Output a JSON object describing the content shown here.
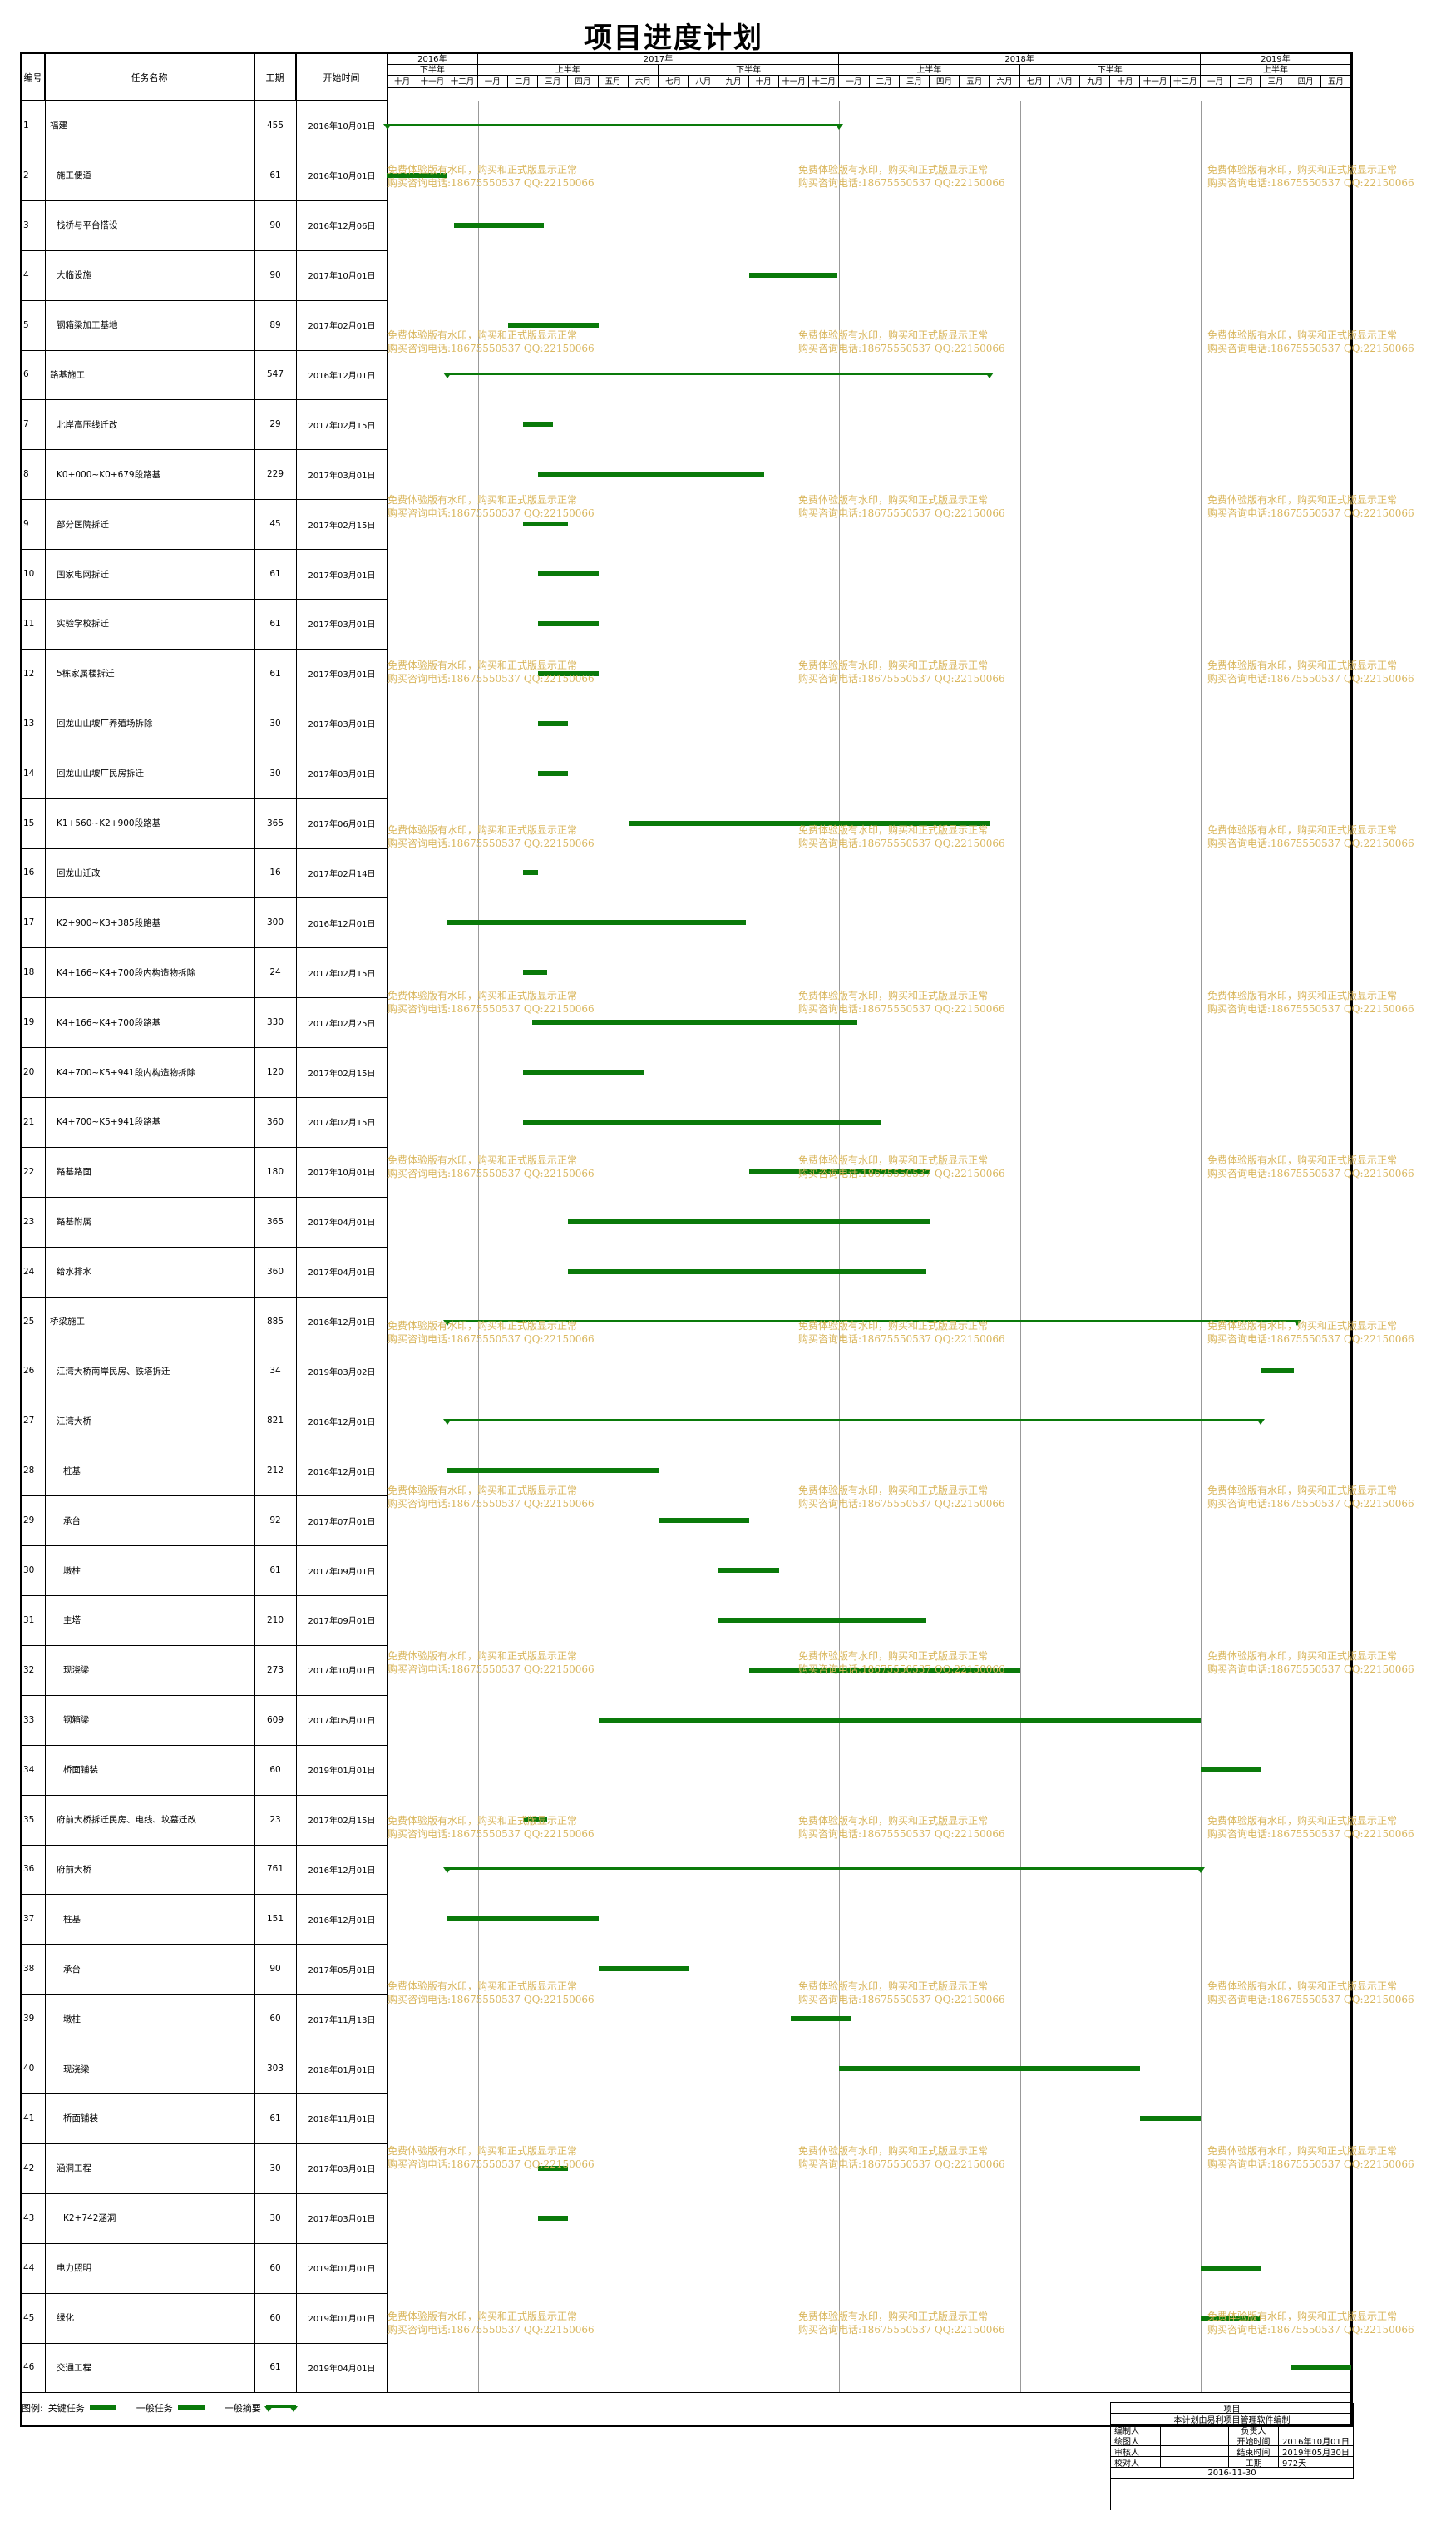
{
  "title": "项目进度计划",
  "columns": {
    "id": "编号",
    "name": "任务名称",
    "duration": "工期",
    "start": "开始时间"
  },
  "timeline": {
    "years": [
      {
        "label": "2016年",
        "start": 0,
        "span": 3
      },
      {
        "label": "2017年",
        "start": 3,
        "span": 12
      },
      {
        "label": "2018年",
        "start": 15,
        "span": 12
      },
      {
        "label": "2019年",
        "start": 27,
        "span": 5
      }
    ],
    "halves": [
      {
        "label": "下半年",
        "start": 0,
        "span": 3
      },
      {
        "label": "上半年",
        "start": 3,
        "span": 6
      },
      {
        "label": "下半年",
        "start": 9,
        "span": 6
      },
      {
        "label": "上半年",
        "start": 15,
        "span": 6
      },
      {
        "label": "下半年",
        "start": 21,
        "span": 6
      },
      {
        "label": "上半年",
        "start": 27,
        "span": 5
      }
    ],
    "months": [
      "十月",
      "十一月",
      "十二月",
      "一月",
      "二月",
      "三月",
      "四月",
      "五月",
      "六月",
      "七月",
      "八月",
      "九月",
      "十月",
      "十一月",
      "十二月",
      "一月",
      "二月",
      "三月",
      "四月",
      "五月",
      "六月",
      "七月",
      "八月",
      "九月",
      "十月",
      "十一月",
      "十二月",
      "一月",
      "二月",
      "三月",
      "四月",
      "五月"
    ]
  },
  "tasks": [
    {
      "id": "1",
      "name": "福建",
      "duration": "455",
      "start": "2016年10月01日",
      "indent": 0,
      "type": "summary",
      "s": 0,
      "e": 15
    },
    {
      "id": "2",
      "name": "施工便道",
      "duration": "61",
      "start": "2016年10月01日",
      "indent": 1,
      "type": "task",
      "s": 0,
      "e": 2
    },
    {
      "id": "3",
      "name": "栈桥与平台搭设",
      "duration": "90",
      "start": "2016年12月06日",
      "indent": 1,
      "type": "task",
      "s": 2.2,
      "e": 5.2
    },
    {
      "id": "4",
      "name": "大临设施",
      "duration": "90",
      "start": "2017年10月01日",
      "indent": 1,
      "type": "task",
      "s": 12,
      "e": 14.9
    },
    {
      "id": "5",
      "name": "钢箱梁加工基地",
      "duration": "89",
      "start": "2017年02月01日",
      "indent": 1,
      "type": "task",
      "s": 4,
      "e": 7
    },
    {
      "id": "6",
      "name": "路基施工",
      "duration": "547",
      "start": "2016年12月01日",
      "indent": 0,
      "type": "summary",
      "s": 2,
      "e": 20
    },
    {
      "id": "7",
      "name": "北岸高压线迁改",
      "duration": "29",
      "start": "2017年02月15日",
      "indent": 1,
      "type": "task",
      "s": 4.5,
      "e": 5.5
    },
    {
      "id": "8",
      "name": "K0+000~K0+679段路基",
      "duration": "229",
      "start": "2017年03月01日",
      "indent": 1,
      "type": "task",
      "s": 5,
      "e": 12.5
    },
    {
      "id": "9",
      "name": "部分医院拆迁",
      "duration": "45",
      "start": "2017年02月15日",
      "indent": 1,
      "type": "task",
      "s": 4.5,
      "e": 6
    },
    {
      "id": "10",
      "name": "国家电网拆迁",
      "duration": "61",
      "start": "2017年03月01日",
      "indent": 1,
      "type": "task",
      "s": 5,
      "e": 7
    },
    {
      "id": "11",
      "name": "实验学校拆迁",
      "duration": "61",
      "start": "2017年03月01日",
      "indent": 1,
      "type": "task",
      "s": 5,
      "e": 7
    },
    {
      "id": "12",
      "name": "5栋家属楼拆迁",
      "duration": "61",
      "start": "2017年03月01日",
      "indent": 1,
      "type": "task",
      "s": 5,
      "e": 7
    },
    {
      "id": "13",
      "name": "回龙山山坡厂养殖场拆除",
      "duration": "30",
      "start": "2017年03月01日",
      "indent": 1,
      "type": "task",
      "s": 5,
      "e": 6
    },
    {
      "id": "14",
      "name": "回龙山山坡厂民房拆迁",
      "duration": "30",
      "start": "2017年03月01日",
      "indent": 1,
      "type": "task",
      "s": 5,
      "e": 6
    },
    {
      "id": "15",
      "name": "K1+560~K2+900段路基",
      "duration": "365",
      "start": "2017年06月01日",
      "indent": 1,
      "type": "task",
      "s": 8,
      "e": 20
    },
    {
      "id": "16",
      "name": "回龙山迁改",
      "duration": "16",
      "start": "2017年02月14日",
      "indent": 1,
      "type": "task",
      "s": 4.5,
      "e": 5
    },
    {
      "id": "17",
      "name": "K2+900~K3+385段路基",
      "duration": "300",
      "start": "2016年12月01日",
      "indent": 1,
      "type": "task",
      "s": 2,
      "e": 11.9
    },
    {
      "id": "18",
      "name": "K4+166~K4+700段内构造物拆除",
      "duration": "24",
      "start": "2017年02月15日",
      "indent": 1,
      "type": "task",
      "s": 4.5,
      "e": 5.3
    },
    {
      "id": "19",
      "name": "K4+166~K4+700段路基",
      "duration": "330",
      "start": "2017年02月25日",
      "indent": 1,
      "type": "task",
      "s": 4.8,
      "e": 15.6
    },
    {
      "id": "20",
      "name": "K4+700~K5+941段内构造物拆除",
      "duration": "120",
      "start": "2017年02月15日",
      "indent": 1,
      "type": "task",
      "s": 4.5,
      "e": 8.5
    },
    {
      "id": "21",
      "name": "K4+700~K5+941段路基",
      "duration": "360",
      "start": "2017年02月15日",
      "indent": 1,
      "type": "task",
      "s": 4.5,
      "e": 16.4
    },
    {
      "id": "22",
      "name": "路基路面",
      "duration": "180",
      "start": "2017年10月01日",
      "indent": 1,
      "type": "task",
      "s": 12,
      "e": 18
    },
    {
      "id": "23",
      "name": "路基附属",
      "duration": "365",
      "start": "2017年04月01日",
      "indent": 1,
      "type": "task",
      "s": 6,
      "e": 18
    },
    {
      "id": "24",
      "name": "给水排水",
      "duration": "360",
      "start": "2017年04月01日",
      "indent": 1,
      "type": "task",
      "s": 6,
      "e": 17.9
    },
    {
      "id": "25",
      "name": "桥梁施工",
      "duration": "885",
      "start": "2016年12月01日",
      "indent": 0,
      "type": "summary",
      "s": 2,
      "e": 30.2
    },
    {
      "id": "26",
      "name": "江湾大桥南岸民房、铁塔拆迁",
      "duration": "34",
      "start": "2019年03月02日",
      "indent": 1,
      "type": "task",
      "s": 29,
      "e": 30.1
    },
    {
      "id": "27",
      "name": "江湾大桥",
      "duration": "821",
      "start": "2016年12月01日",
      "indent": 1,
      "type": "summary",
      "s": 2,
      "e": 29
    },
    {
      "id": "28",
      "name": "桩基",
      "duration": "212",
      "start": "2016年12月01日",
      "indent": 2,
      "type": "task",
      "s": 2,
      "e": 9
    },
    {
      "id": "29",
      "name": "承台",
      "duration": "92",
      "start": "2017年07月01日",
      "indent": 2,
      "type": "task",
      "s": 9,
      "e": 12
    },
    {
      "id": "30",
      "name": "墩柱",
      "duration": "61",
      "start": "2017年09月01日",
      "indent": 2,
      "type": "task",
      "s": 11,
      "e": 13
    },
    {
      "id": "31",
      "name": "主塔",
      "duration": "210",
      "start": "2017年09月01日",
      "indent": 2,
      "type": "task",
      "s": 11,
      "e": 17.9
    },
    {
      "id": "32",
      "name": "现浇梁",
      "duration": "273",
      "start": "2017年10月01日",
      "indent": 2,
      "type": "task",
      "s": 12,
      "e": 21
    },
    {
      "id": "33",
      "name": "钢箱梁",
      "duration": "609",
      "start": "2017年05月01日",
      "indent": 2,
      "type": "task",
      "s": 7,
      "e": 27
    },
    {
      "id": "34",
      "name": "桥面铺装",
      "duration": "60",
      "start": "2019年01月01日",
      "indent": 2,
      "type": "task",
      "s": 27,
      "e": 29
    },
    {
      "id": "35",
      "name": "府前大桥拆迁民房、电线、坟墓迁改",
      "duration": "23",
      "start": "2017年02月15日",
      "indent": 1,
      "type": "task",
      "s": 4.5,
      "e": 5.3
    },
    {
      "id": "36",
      "name": "府前大桥",
      "duration": "761",
      "start": "2016年12月01日",
      "indent": 1,
      "type": "summary",
      "s": 2,
      "e": 27
    },
    {
      "id": "37",
      "name": "桩基",
      "duration": "151",
      "start": "2016年12月01日",
      "indent": 2,
      "type": "task",
      "s": 2,
      "e": 7
    },
    {
      "id": "38",
      "name": "承台",
      "duration": "90",
      "start": "2017年05月01日",
      "indent": 2,
      "type": "task",
      "s": 7,
      "e": 10
    },
    {
      "id": "39",
      "name": "墩柱",
      "duration": "60",
      "start": "2017年11月13日",
      "indent": 2,
      "type": "task",
      "s": 13.4,
      "e": 15.4
    },
    {
      "id": "40",
      "name": "现浇梁",
      "duration": "303",
      "start": "2018年01月01日",
      "indent": 2,
      "type": "task",
      "s": 15,
      "e": 25
    },
    {
      "id": "41",
      "name": "桥面铺装",
      "duration": "61",
      "start": "2018年11月01日",
      "indent": 2,
      "type": "task",
      "s": 25,
      "e": 27
    },
    {
      "id": "42",
      "name": "涵洞工程",
      "duration": "30",
      "start": "2017年03月01日",
      "indent": 1,
      "type": "task",
      "s": 5,
      "e": 6
    },
    {
      "id": "43",
      "name": "K2+742涵洞",
      "duration": "30",
      "start": "2017年03月01日",
      "indent": 2,
      "type": "task",
      "s": 5,
      "e": 6
    },
    {
      "id": "44",
      "name": "电力照明",
      "duration": "60",
      "start": "2019年01月01日",
      "indent": 1,
      "type": "task",
      "s": 27,
      "e": 29
    },
    {
      "id": "45",
      "name": "绿化",
      "duration": "60",
      "start": "2019年01月01日",
      "indent": 1,
      "type": "task",
      "s": 27,
      "e": 29
    },
    {
      "id": "46",
      "name": "交通工程",
      "duration": "61",
      "start": "2019年04月01日",
      "indent": 1,
      "type": "task",
      "s": 30,
      "e": 32
    }
  ],
  "watermark": {
    "line1": "免费体验版有水印，购买和正式版显示正常",
    "line2": "购买咨询电话:18675550537 QQ:22150066"
  },
  "legend": {
    "label": "图例:",
    "critical": "关键任务",
    "normal": "一般任务",
    "summary": "一般摘要"
  },
  "signbox": {
    "project": "项目",
    "note": "本计划由易利项目管理软件编制",
    "rows": [
      {
        "k": "编制人",
        "v": "",
        "k2": "负责人",
        "v2": ""
      },
      {
        "k": "绘图人",
        "v": "",
        "k2": "开始时间",
        "v2": "2016年10月01日"
      },
      {
        "k": "审核人",
        "v": "",
        "k2": "结束时间",
        "v2": "2019年05月30日"
      },
      {
        "k": "校对人",
        "v": "",
        "k2": "工期",
        "v2": "972天"
      }
    ],
    "date": "2016-11-30"
  },
  "colors": {
    "bar": "#0a7a0a",
    "watermark": "#d9b65c"
  }
}
